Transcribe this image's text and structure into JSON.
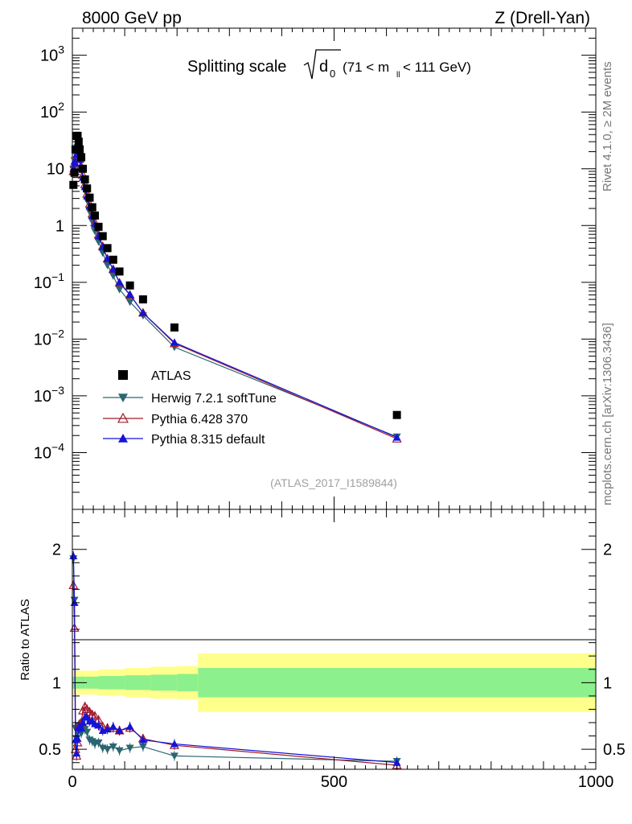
{
  "header": {
    "left": "8000 GeV pp",
    "right": "Z (Drell-Yan)"
  },
  "title": {
    "prefix": "Splitting scale",
    "d": "d",
    "sub0": "0",
    "range_a": "(71 < m",
    "range_ll": "ll",
    "range_b": " < 111 GeV)"
  },
  "side": {
    "rivet": "Rivet 4.1.0, ≥ 2M events",
    "mcplots": "mcplots.cern.ch [arXiv:1306.3436]"
  },
  "watermark": "(ATLAS_2017_I1589844)",
  "chart_data": [
    {
      "type": "scatter",
      "panel": "main",
      "yscale": "log",
      "xlim": [
        0,
        1000
      ],
      "ylim": [
        1e-05,
        3000
      ],
      "yticks": [
        {
          "v": 1000,
          "b": "10",
          "e": "3"
        },
        {
          "v": 100,
          "b": "10",
          "e": "2"
        },
        {
          "v": 10,
          "b": "10",
          "e": ""
        },
        {
          "v": 1,
          "b": "1",
          "e": ""
        },
        {
          "v": 0.1,
          "b": "10",
          "e": "−1"
        },
        {
          "v": 0.01,
          "b": "10",
          "e": "−2"
        },
        {
          "v": 0.001,
          "b": "10",
          "e": "−3"
        },
        {
          "v": 0.0001,
          "b": "10",
          "e": "−4"
        }
      ],
      "legend": [
        "ATLAS",
        "Herwig 7.2.1 softTune",
        "Pythia 6.428 370",
        "Pythia 8.315 default"
      ],
      "x": [
        2,
        4,
        6,
        8,
        10,
        12,
        14,
        17,
        20,
        24,
        28,
        33,
        38,
        43,
        50,
        58,
        67,
        78,
        90,
        110,
        135,
        195,
        620
      ],
      "series": [
        {
          "name": "ATLAS",
          "color": "#000000",
          "marker": "square",
          "values": [
            5.2,
            8.5,
            22,
            38,
            38,
            30,
            22,
            16,
            10,
            6.5,
            4.5,
            3.1,
            2.1,
            1.5,
            0.95,
            0.65,
            0.4,
            0.25,
            0.155,
            0.088,
            0.05,
            0.016,
            0.00046
          ]
        },
        {
          "name": "Herwig 7.2.1 softTune",
          "color": "#2a6670",
          "marker": "triangle-down",
          "values": [
            10,
            14,
            14.5,
            22,
            24,
            20,
            14,
            10,
            6.5,
            4.2,
            2.8,
            1.75,
            1.18,
            0.8,
            0.52,
            0.33,
            0.2,
            0.13,
            0.075,
            0.045,
            0.026,
            0.0072,
            0.00019
          ]
        },
        {
          "name": "Pythia 6.428 370",
          "color": "#a31c2c",
          "marker": "triangle-open",
          "values": [
            9,
            12,
            11,
            17,
            21,
            20,
            15,
            11,
            7.8,
            5.3,
            3.6,
            2.4,
            1.6,
            1.13,
            0.69,
            0.43,
            0.26,
            0.17,
            0.098,
            0.06,
            0.029,
            0.0084,
            0.000175
          ]
        },
        {
          "name": "Pythia 8.315 default",
          "color": "#1414d6",
          "marker": "triangle-up",
          "values": [
            10,
            13.5,
            12.5,
            18,
            22,
            20,
            14.5,
            10.5,
            7,
            4.8,
            3.3,
            2.2,
            1.5,
            1.05,
            0.65,
            0.42,
            0.26,
            0.17,
            0.1,
            0.061,
            0.029,
            0.0087,
            0.000185
          ]
        }
      ]
    },
    {
      "type": "line",
      "panel": "ratio",
      "ylabel": "Ratio to ATLAS",
      "xlabel": "",
      "xlim": [
        0,
        1000
      ],
      "ylim": [
        0.35,
        2.3
      ],
      "xticks": [
        0,
        500,
        1000
      ],
      "yticks": [
        0.5,
        1,
        2
      ],
      "x": [
        2,
        4,
        6,
        8,
        10,
        12,
        14,
        17,
        20,
        24,
        28,
        33,
        38,
        43,
        50,
        58,
        67,
        78,
        90,
        110,
        135,
        195,
        620
      ],
      "band_edges": [
        0,
        25,
        50,
        100,
        150,
        200,
        240,
        1000
      ],
      "band_inner_hw": [
        0.045,
        0.045,
        0.05,
        0.055,
        0.06,
        0.065,
        0.11
      ],
      "band_outer_hw": [
        0.09,
        0.09,
        0.1,
        0.11,
        0.12,
        0.125,
        0.22
      ],
      "series": [
        {
          "name": "Herwig 7.2.1 softTune",
          "color": "#2a6670",
          "marker": "triangle-down",
          "values": [
            1.93,
            1.62,
            0.66,
            0.58,
            0.63,
            0.68,
            0.64,
            0.62,
            0.65,
            0.65,
            0.63,
            0.57,
            0.56,
            0.54,
            0.55,
            0.51,
            0.5,
            0.52,
            0.49,
            0.51,
            0.52,
            0.45,
            0.41
          ]
        },
        {
          "name": "Pythia 6.428 370",
          "color": "#a31c2c",
          "marker": "triangle-open",
          "values": [
            1.73,
            1.41,
            0.5,
            0.45,
            0.55,
            0.67,
            0.69,
            0.7,
            0.79,
            0.82,
            0.8,
            0.78,
            0.76,
            0.75,
            0.72,
            0.67,
            0.66,
            0.66,
            0.64,
            0.66,
            0.58,
            0.53,
            0.38
          ]
        },
        {
          "name": "Pythia 8.315 default",
          "color": "#1414d6",
          "marker": "triangle-up",
          "values": [
            1.95,
            1.6,
            0.57,
            0.47,
            0.58,
            0.66,
            0.66,
            0.66,
            0.7,
            0.74,
            0.74,
            0.71,
            0.71,
            0.69,
            0.68,
            0.64,
            0.65,
            0.67,
            0.64,
            0.67,
            0.57,
            0.54,
            0.4
          ]
        }
      ]
    }
  ]
}
